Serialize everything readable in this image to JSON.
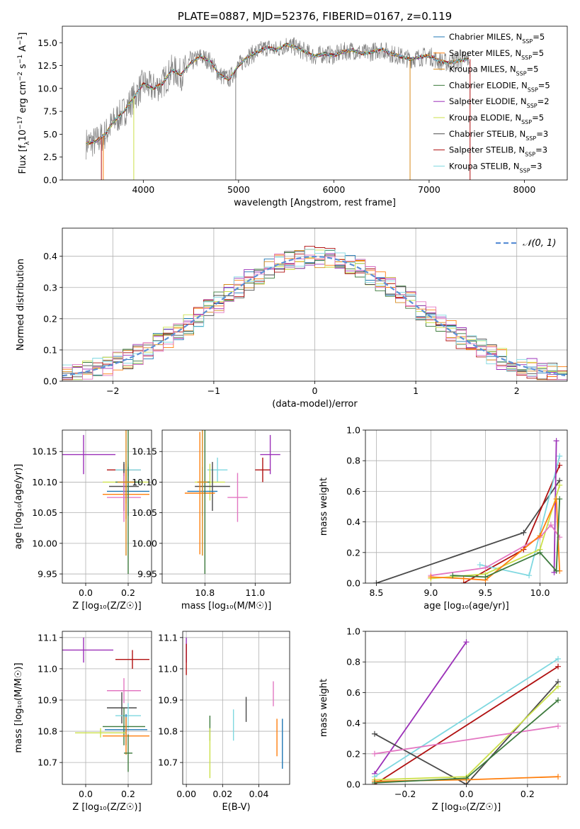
{
  "colors": {
    "chabrier_miles": "#1f77b4",
    "salpeter_miles": "#ff7f0e",
    "kroupa_miles": "#d6891a",
    "chabrier_elodie": "#3d7a3d",
    "salpeter_elodie": "#9b30b8",
    "kroupa_elodie": "#cbe04a",
    "chabrier_stelib": "#4a4a4a",
    "salpeter_stelib": "#b01010",
    "kroupa_stelib": "#7fd8e0",
    "pink": "#e377c2",
    "gray_spectrum": "#808080",
    "normal_dashed": "#5b8fd6"
  },
  "chart_data": [
    {
      "id": "spectrum",
      "type": "line",
      "title": "PLATE=0887, MJD=52376, FIBERID=0167, z=0.119",
      "xlabel": "wavelength [Angstrom, rest frame]",
      "ylabel_parts": [
        "Flux [f",
        "λ",
        "10",
        "−17",
        " erg cm",
        "−2",
        " s",
        "−1",
        " A",
        "−1",
        "]"
      ],
      "xlim": [
        3150,
        8450
      ],
      "ylim": [
        0,
        16.8
      ],
      "xticks": [
        4000,
        5000,
        6000,
        7000,
        8000
      ],
      "yticks": [
        0.0,
        2.5,
        5.0,
        7.5,
        10.0,
        12.5,
        15.0
      ],
      "ytick_labels": [
        "0.0",
        "2.5",
        "5.0",
        "7.5",
        "10.0",
        "12.5",
        "15.0"
      ],
      "legend_position": "right",
      "legend": [
        {
          "label": "Chabrier MILES, N",
          "sub": "SSP",
          "suffix": "=5",
          "color_key": "chabrier_miles"
        },
        {
          "label": "Salpeter MILES, N",
          "sub": "SSP",
          "suffix": "=5",
          "color_key": "salpeter_miles"
        },
        {
          "label": "Kroupa MILES, N",
          "sub": "SSP",
          "suffix": "=5",
          "color_key": "kroupa_miles"
        },
        {
          "label": "Chabrier ELODIE, N",
          "sub": "SSP",
          "suffix": "=5",
          "color_key": "chabrier_elodie"
        },
        {
          "label": "Salpeter ELODIE, N",
          "sub": "SSP",
          "suffix": "=2",
          "color_key": "salpeter_elodie"
        },
        {
          "label": "Kroupa ELODIE, N",
          "sub": "SSP",
          "suffix": "=5",
          "color_key": "kroupa_elodie"
        },
        {
          "label": "Chabrier STELIB, N",
          "sub": "SSP",
          "suffix": "=3",
          "color_key": "chabrier_stelib"
        },
        {
          "label": "Salpeter STELIB, N",
          "sub": "SSP",
          "suffix": "=3",
          "color_key": "salpeter_stelib"
        },
        {
          "label": "Kroupa STELIB, N",
          "sub": "SSP",
          "suffix": "=3",
          "color_key": "kroupa_stelib"
        }
      ],
      "envelope": {
        "x": [
          3400,
          3500,
          3600,
          3700,
          3800,
          3900,
          4000,
          4100,
          4200,
          4300,
          4400,
          4500,
          4600,
          4700,
          4800,
          4900,
          5000,
          5100,
          5200,
          5300,
          5400,
          5500,
          5600,
          5700,
          5800,
          5900,
          6000,
          6100,
          6200,
          6300,
          6400,
          6500,
          6600,
          6700,
          6800,
          6900,
          7000,
          7100,
          7200,
          7300,
          7400
        ],
        "y": [
          4.0,
          4.2,
          5.0,
          6.5,
          7.5,
          9.0,
          10.5,
          10.0,
          10.5,
          12.0,
          11.5,
          12.8,
          13.5,
          13.0,
          11.5,
          11.0,
          12.5,
          13.5,
          14.0,
          14.5,
          14.2,
          14.8,
          14.5,
          14.0,
          13.5,
          13.8,
          13.6,
          14.0,
          14.2,
          13.8,
          14.0,
          14.3,
          13.8,
          13.5,
          13.2,
          13.4,
          13.6,
          13.0,
          12.8,
          13.0,
          13.2
        ]
      },
      "gap_lines": [
        {
          "x": 3560,
          "color_key": "salpeter_stelib"
        },
        {
          "x": 3580,
          "color_key": "salpeter_miles"
        },
        {
          "x": 3900,
          "color_key": "kroupa_elodie"
        },
        {
          "x": 4970,
          "color_key": "gray_spectrum"
        },
        {
          "x": 6800,
          "color_key": "kroupa_miles"
        },
        {
          "x": 7430,
          "color_key": "salpeter_stelib"
        }
      ]
    },
    {
      "id": "residual-histogram",
      "type": "line",
      "xlabel": "(data-model)/error",
      "ylabel": "Normed distribution",
      "xlim": [
        -2.5,
        2.5
      ],
      "ylim": [
        0,
        0.49
      ],
      "xticks": [
        -2,
        -1,
        0,
        1,
        2
      ],
      "xtick_labels": [
        "−2",
        "−1",
        "0",
        "1",
        "2"
      ],
      "yticks": [
        0.0,
        0.1,
        0.2,
        0.3,
        0.4
      ],
      "ytick_labels": [
        "0.0",
        "0.1",
        "0.2",
        "0.3",
        "0.4"
      ],
      "grid": true,
      "legend_position": "top-right",
      "legend": [
        {
          "label": "𝒩(0, 1)",
          "color_key": "normal_dashed",
          "dashed": true
        }
      ],
      "bin_width": 0.1
    },
    {
      "id": "age-vs-Z",
      "type": "scatter",
      "xlabel": "Z [log₁₀(Z/Z☉)]",
      "ylabel": "age  [log₁₀(age/yr)]",
      "xlim": [
        -0.11,
        0.31
      ],
      "ylim": [
        9.935,
        10.185
      ],
      "xticks": [
        0.0,
        0.2
      ],
      "xtick_labels": [
        "0.0",
        "0.2"
      ],
      "yticks": [
        9.95,
        10.0,
        10.05,
        10.1,
        10.15
      ],
      "ytick_labels": [
        "9.95",
        "10.00",
        "10.05",
        "10.10",
        "10.15"
      ],
      "grid": true,
      "points": [
        {
          "x": -0.01,
          "xerr": 0.15,
          "y": 10.145,
          "yerr": 0.032,
          "color_key": "salpeter_elodie"
        },
        {
          "x": 0.19,
          "xerr": 0.11,
          "y": 10.1,
          "yerr": 0.035,
          "color_key": "kroupa_elodie"
        },
        {
          "x": 0.18,
          "xerr": 0.08,
          "y": 10.12,
          "yerr": 0.01,
          "color_key": "salpeter_stelib"
        },
        {
          "x": 0.2,
          "xerr": 0.06,
          "y": 10.12,
          "yerr": 0.01,
          "color_key": "kroupa_stelib"
        },
        {
          "x": 0.18,
          "xerr": 0.07,
          "y": 10.093,
          "yerr": 0.04,
          "color_key": "chabrier_stelib"
        },
        {
          "x": 0.2,
          "xerr": 0.1,
          "y": 10.085,
          "yerr": 0.04,
          "color_key": "chabrier_miles"
        },
        {
          "x": 0.19,
          "xerr": 0.11,
          "y": 10.08,
          "yerr": 0.04,
          "color_key": "salpeter_miles"
        },
        {
          "x": 0.18,
          "xerr": 0.08,
          "y": 10.075,
          "yerr": 0.04,
          "color_key": "pink"
        },
        {
          "x": 0.2,
          "xerr": 0.06,
          "y": 10.1,
          "yerr": 0.15,
          "color_key": "chabrier_elodie"
        },
        {
          "x": 0.19,
          "xerr": 0.04,
          "y": 10.1,
          "yerr": 0.12,
          "color_key": "kroupa_miles"
        }
      ]
    },
    {
      "id": "age-vs-mass",
      "type": "scatter",
      "xlabel": "mass [log₁₀(M/M☉)]",
      "ylabel": "",
      "xlim": [
        10.63,
        11.14
      ],
      "ylim": [
        9.935,
        10.185
      ],
      "xticks": [
        10.8,
        11.0
      ],
      "xtick_labels": [
        "10.8",
        "11.0"
      ],
      "yticks": [
        9.95,
        10.0,
        10.05,
        10.1,
        10.15
      ],
      "ytick_labels": [
        "9.95",
        "10.00",
        "10.05",
        "10.10",
        "10.15"
      ],
      "grid": true,
      "points": [
        {
          "x": 11.06,
          "xerr": 0.04,
          "y": 10.145,
          "yerr": 0.032,
          "color_key": "salpeter_elodie"
        },
        {
          "x": 11.03,
          "xerr": 0.03,
          "y": 10.12,
          "yerr": 0.02,
          "color_key": "salpeter_stelib"
        },
        {
          "x": 10.93,
          "xerr": 0.04,
          "y": 10.075,
          "yerr": 0.04,
          "color_key": "pink"
        },
        {
          "x": 10.85,
          "xerr": 0.04,
          "y": 10.12,
          "yerr": 0.02,
          "color_key": "kroupa_stelib"
        },
        {
          "x": 10.82,
          "xerr": 0.06,
          "y": 10.1,
          "yerr": 0.03,
          "color_key": "kroupa_elodie"
        },
        {
          "x": 10.83,
          "xerr": 0.07,
          "y": 10.093,
          "yerr": 0.04,
          "color_key": "chabrier_stelib"
        },
        {
          "x": 10.79,
          "xerr": 0.06,
          "y": 10.085,
          "yerr": 0.04,
          "color_key": "chabrier_miles"
        },
        {
          "x": 10.78,
          "xerr": 0.06,
          "y": 10.082,
          "yerr": 0.1,
          "color_key": "salpeter_miles"
        },
        {
          "x": 10.8,
          "xerr": 0.02,
          "y": 10.1,
          "yerr": 0.15,
          "color_key": "chabrier_elodie"
        },
        {
          "x": 10.79,
          "xerr": 0.02,
          "y": 10.1,
          "yerr": 0.12,
          "color_key": "kroupa_miles"
        }
      ]
    },
    {
      "id": "massweight-vs-age",
      "type": "line",
      "xlabel": "age  [log₁₀(age/yr)]",
      "ylabel": "mass weight",
      "xlim": [
        8.4,
        10.25
      ],
      "ylim": [
        0,
        1.0
      ],
      "xticks": [
        8.5,
        9.0,
        9.5,
        10.0
      ],
      "xtick_labels": [
        "8.5",
        "9.0",
        "9.5",
        "10.0"
      ],
      "yticks": [
        0.0,
        0.2,
        0.4,
        0.6,
        0.8,
        1.0
      ],
      "ytick_labels": [
        "0.0",
        "0.2",
        "0.4",
        "0.6",
        "0.8",
        "1.0"
      ],
      "grid": true,
      "series": [
        {
          "color_key": "chabrier_stelib",
          "x": [
            8.5,
            9.85,
            10.18
          ],
          "y": [
            0.0,
            0.33,
            0.67
          ]
        },
        {
          "color_key": "salpeter_stelib",
          "x": [
            9.3,
            9.85,
            10.18
          ],
          "y": [
            0.0,
            0.22,
            0.77
          ]
        },
        {
          "color_key": "kroupa_stelib",
          "x": [
            9.45,
            9.9,
            10.18
          ],
          "y": [
            0.12,
            0.05,
            0.83
          ]
        },
        {
          "color_key": "salpeter_elodie",
          "x": [
            10.13,
            10.15
          ],
          "y": [
            0.07,
            0.93
          ]
        },
        {
          "color_key": "kroupa_elodie",
          "x": [
            9.0,
            9.5,
            10.0,
            10.18
          ],
          "y": [
            0.03,
            0.06,
            0.22,
            0.64
          ]
        },
        {
          "color_key": "pink",
          "x": [
            9.0,
            9.5,
            10.0,
            10.1,
            10.18
          ],
          "y": [
            0.05,
            0.1,
            0.3,
            0.38,
            0.3
          ]
        },
        {
          "color_key": "salpeter_miles",
          "x": [
            9.0,
            9.3,
            9.5,
            10.0,
            10.15,
            10.18
          ],
          "y": [
            0.04,
            0.03,
            0.02,
            0.31,
            0.55,
            0.08
          ]
        },
        {
          "color_key": "chabrier_elodie",
          "x": [
            9.2,
            9.5,
            10.0,
            10.15,
            10.18
          ],
          "y": [
            0.05,
            0.04,
            0.2,
            0.08,
            0.55
          ]
        }
      ]
    },
    {
      "id": "mass-vs-Z",
      "type": "scatter",
      "xlabel": "Z [log₁₀(Z/Z☉)]",
      "ylabel": "mass [log₁₀(M/M☉)]",
      "xlim": [
        -0.11,
        0.31
      ],
      "ylim": [
        10.63,
        11.12
      ],
      "xticks": [
        0.0,
        0.2
      ],
      "xtick_labels": [
        "0.0",
        "0.2"
      ],
      "yticks": [
        10.7,
        10.8,
        10.9,
        11.0,
        11.1
      ],
      "ytick_labels": [
        "10.7",
        "10.8",
        "10.9",
        "11.0",
        "11.1"
      ],
      "grid": true,
      "points": [
        {
          "x": -0.01,
          "xerr": 0.14,
          "y": 11.06,
          "yerr": 0.04,
          "color_key": "salpeter_elodie"
        },
        {
          "x": 0.22,
          "xerr": 0.08,
          "y": 11.03,
          "yerr": 0.03,
          "color_key": "salpeter_stelib"
        },
        {
          "x": 0.18,
          "xerr": 0.08,
          "y": 10.93,
          "yerr": 0.04,
          "color_key": "pink"
        },
        {
          "x": 0.17,
          "xerr": 0.07,
          "y": 10.875,
          "yerr": 0.05,
          "color_key": "chabrier_stelib"
        },
        {
          "x": 0.2,
          "xerr": 0.06,
          "y": 10.85,
          "yerr": 0.04,
          "color_key": "kroupa_stelib"
        },
        {
          "x": 0.18,
          "xerr": 0.1,
          "y": 10.815,
          "yerr": 0.06,
          "color_key": "chabrier_elodie"
        },
        {
          "x": 0.19,
          "xerr": 0.1,
          "y": 10.805,
          "yerr": 0.05,
          "color_key": "chabrier_miles"
        },
        {
          "x": 0.07,
          "xerr": 0.12,
          "y": 10.795,
          "yerr": 0.015,
          "color_key": "kroupa_elodie"
        },
        {
          "x": 0.19,
          "xerr": 0.11,
          "y": 10.785,
          "yerr": 0.06,
          "color_key": "salpeter_miles"
        },
        {
          "x": 0.2,
          "xerr": 0.02,
          "y": 10.73,
          "yerr": 0.06,
          "color_key": "chabrier_elodie"
        }
      ]
    },
    {
      "id": "mass-vs-EBV",
      "type": "scatter",
      "xlabel": "E(B-V)",
      "ylabel": "",
      "xlim": [
        -0.002,
        0.057
      ],
      "ylim": [
        10.63,
        11.12
      ],
      "xticks": [
        0.0,
        0.02,
        0.04
      ],
      "xtick_labels": [
        "0.00",
        "0.02",
        "0.04"
      ],
      "yticks": [
        10.7,
        10.8,
        10.9,
        11.0,
        11.1
      ],
      "ytick_labels": [
        "10.7",
        "10.8",
        "10.9",
        "11.0",
        "11.1"
      ],
      "grid": true,
      "points": [
        {
          "x": 0.0,
          "y": 11.06,
          "yerr": 0.04,
          "color_key": "salpeter_elodie"
        },
        {
          "x": 0.0,
          "y": 11.03,
          "yerr": 0.05,
          "color_key": "salpeter_stelib"
        },
        {
          "x": 0.013,
          "y": 10.81,
          "yerr": 0.04,
          "color_key": "chabrier_elodie"
        },
        {
          "x": 0.013,
          "y": 10.73,
          "yerr": 0.08,
          "color_key": "kroupa_elodie"
        },
        {
          "x": 0.026,
          "y": 10.82,
          "yerr": 0.05,
          "color_key": "kroupa_stelib"
        },
        {
          "x": 0.033,
          "y": 10.87,
          "yerr": 0.04,
          "color_key": "chabrier_stelib"
        },
        {
          "x": 0.048,
          "y": 10.92,
          "yerr": 0.04,
          "color_key": "pink"
        },
        {
          "x": 0.05,
          "y": 10.78,
          "yerr": 0.06,
          "color_key": "salpeter_miles"
        },
        {
          "x": 0.053,
          "y": 10.76,
          "yerr": 0.08,
          "color_key": "chabrier_miles"
        }
      ]
    },
    {
      "id": "massweight-vs-Z",
      "type": "line",
      "xlabel": "Z [log₁₀(Z/Z☉)]",
      "ylabel": "mass weight",
      "xlim": [
        -0.33,
        0.33
      ],
      "ylim": [
        0,
        1.0
      ],
      "xticks": [
        -0.2,
        0.0,
        0.2
      ],
      "xtick_labels": [
        "−0.2",
        "0.0",
        "0.2"
      ],
      "yticks": [
        0.0,
        0.2,
        0.4,
        0.6,
        0.8,
        1.0
      ],
      "ytick_labels": [
        "0.0",
        "0.2",
        "0.4",
        "0.6",
        "0.8",
        "1.0"
      ],
      "grid": true,
      "series": [
        {
          "color_key": "salpeter_elodie",
          "x": [
            -0.3,
            0.0
          ],
          "y": [
            0.07,
            0.93
          ]
        },
        {
          "color_key": "kroupa_stelib",
          "x": [
            -0.3,
            0.3
          ],
          "y": [
            0.05,
            0.82
          ]
        },
        {
          "color_key": "salpeter_stelib",
          "x": [
            -0.3,
            0.3
          ],
          "y": [
            0.0,
            0.77
          ]
        },
        {
          "color_key": "chabrier_stelib",
          "x": [
            -0.3,
            0.0,
            0.3
          ],
          "y": [
            0.33,
            0.0,
            0.67
          ]
        },
        {
          "color_key": "kroupa_elodie",
          "x": [
            -0.3,
            0.0,
            0.3
          ],
          "y": [
            0.03,
            0.05,
            0.64
          ]
        },
        {
          "color_key": "pink",
          "x": [
            -0.3,
            0.3
          ],
          "y": [
            0.2,
            0.38
          ]
        },
        {
          "color_key": "salpeter_miles",
          "x": [
            -0.3,
            0.0,
            0.3
          ],
          "y": [
            0.02,
            0.03,
            0.05
          ]
        },
        {
          "color_key": "chabrier_elodie",
          "x": [
            -0.3,
            0.0,
            0.3
          ],
          "y": [
            0.01,
            0.04,
            0.55
          ]
        }
      ]
    }
  ]
}
